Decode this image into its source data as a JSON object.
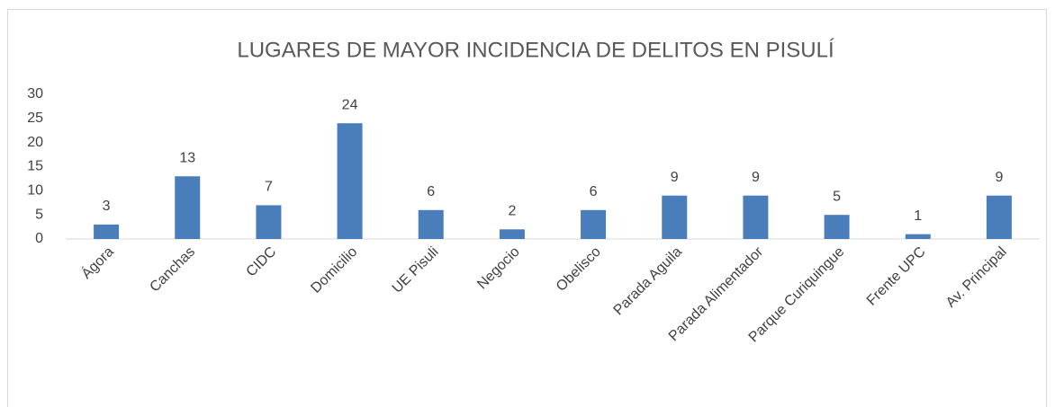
{
  "chart_data": {
    "type": "bar",
    "title": "LUGARES DE MAYOR INCIDENCIA DE DELITOS EN PISULÍ",
    "categories": [
      "Ágora",
      "Canchas",
      "CIDC",
      "Domicilio",
      "UE Pisuli",
      "Negocio",
      "Obelisco",
      "Parada Aguila",
      "Parada Alimentador",
      "Parque Curiquingue",
      "Frente UPC",
      "Av. Principal"
    ],
    "values": [
      3,
      13,
      7,
      24,
      6,
      2,
      6,
      9,
      9,
      5,
      1,
      9
    ],
    "color": "#4a7ebb",
    "ylim": [
      0,
      30
    ],
    "yticks": [
      0,
      5,
      10,
      15,
      20,
      25,
      30
    ],
    "grid": false,
    "data_labels": true
  }
}
